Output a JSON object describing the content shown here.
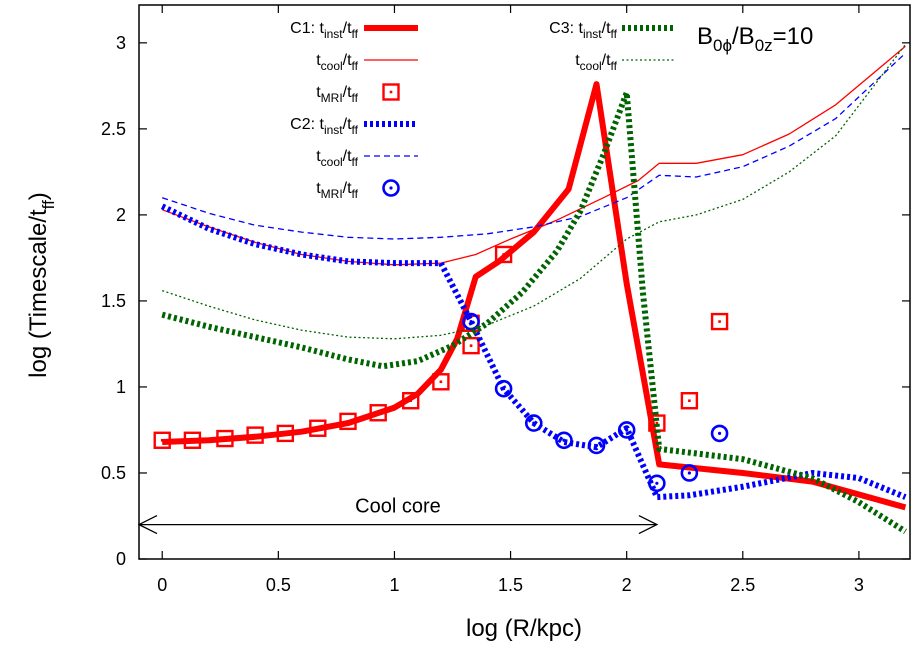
{
  "chart_data": {
    "type": "line",
    "xlabel": "log (R/kpc)",
    "ylabel": "log (Timescale/t",
    "ylabel_sub": "ff",
    "ylabel_close": ")",
    "xlim": [
      -0.1,
      3.22
    ],
    "ylim": [
      0,
      3.22
    ],
    "x_ticks": [
      0,
      0.5,
      1,
      1.5,
      2,
      2.5,
      3
    ],
    "x_tick_labels": [
      "0",
      "0.5",
      "1",
      "1.5",
      "2",
      "2.5",
      "3"
    ],
    "y_ticks": [
      0,
      0.5,
      1,
      1.5,
      2,
      2.5,
      3
    ],
    "y_tick_labels": [
      "0",
      "0.5",
      "1",
      "1.5",
      "2",
      "2.5",
      "3"
    ],
    "annotation": {
      "text": "Cool core",
      "x_from": -0.1,
      "x_to": 2.13,
      "y": 0.2
    },
    "bfield": {
      "main": "B",
      "sub1": "0ϕ",
      "slash": "/B",
      "sub2": "0z",
      "tail": "=10"
    },
    "colors": {
      "c1": "#ff0000",
      "c2": "#0000ff",
      "c3": "#006400"
    },
    "series": [
      {
        "id": "c1_inst",
        "legend": {
          "prefix": "C1: ",
          "main": "t",
          "sub": "inst",
          "rest": "/t",
          "sub2": "ff"
        },
        "color": "#ff0000",
        "style": "thick",
        "marker": "none",
        "x": [
          0,
          0.2,
          0.4,
          0.6,
          0.8,
          1.0,
          1.1,
          1.2,
          1.27,
          1.35,
          1.45,
          1.6,
          1.75,
          1.87,
          2.0,
          2.14,
          2.5,
          2.8,
          3.2
        ],
        "values": [
          0.68,
          0.69,
          0.71,
          0.74,
          0.79,
          0.88,
          0.96,
          1.1,
          1.28,
          1.64,
          1.73,
          1.9,
          2.15,
          2.76,
          1.6,
          0.55,
          0.5,
          0.45,
          0.3
        ]
      },
      {
        "id": "c1_cool",
        "legend": {
          "prefix": "",
          "main": "t",
          "sub": "cool",
          "rest": "/t",
          "sub2": "ff"
        },
        "color": "#ff0000",
        "style": "thin",
        "marker": "none",
        "x": [
          0,
          0.2,
          0.4,
          0.6,
          0.8,
          1.0,
          1.2,
          1.35,
          1.5,
          1.7,
          1.9,
          2.05,
          2.14,
          2.3,
          2.5,
          2.7,
          2.9,
          3.2
        ],
        "values": [
          2.03,
          1.93,
          1.84,
          1.77,
          1.73,
          1.71,
          1.72,
          1.77,
          1.86,
          1.97,
          2.1,
          2.2,
          2.3,
          2.3,
          2.35,
          2.47,
          2.64,
          2.98
        ]
      },
      {
        "id": "c1_mri",
        "legend": {
          "prefix": "",
          "main": "t",
          "sub": "MRI",
          "rest": "/t",
          "sub2": "ff"
        },
        "color": "#ff0000",
        "style": "none",
        "marker": "square",
        "x": [
          0,
          0.13,
          0.27,
          0.4,
          0.53,
          0.67,
          0.8,
          0.93,
          1.07,
          1.2,
          1.33,
          1.33,
          1.47,
          2.13,
          2.27,
          2.4
        ],
        "values": [
          0.69,
          0.69,
          0.7,
          0.72,
          0.73,
          0.76,
          0.8,
          0.85,
          0.92,
          1.03,
          1.24,
          1.37,
          1.77,
          0.79,
          0.92,
          1.38
        ]
      },
      {
        "id": "c2_inst",
        "legend": {
          "prefix": "C2: ",
          "main": "t",
          "sub": "inst",
          "rest": "/t",
          "sub2": "ff"
        },
        "color": "#0000ff",
        "style": "thick-dotted",
        "marker": "none",
        "x": [
          0,
          0.2,
          0.4,
          0.6,
          0.8,
          1.0,
          1.2,
          1.33,
          1.47,
          1.6,
          1.73,
          1.87,
          2.0,
          2.13,
          2.27,
          2.5,
          2.8,
          3.0,
          3.2
        ],
        "values": [
          2.05,
          1.92,
          1.83,
          1.77,
          1.73,
          1.72,
          1.72,
          1.38,
          0.99,
          0.79,
          0.68,
          0.65,
          0.76,
          0.36,
          0.37,
          0.42,
          0.5,
          0.47,
          0.36
        ]
      },
      {
        "id": "c2_cool",
        "legend": {
          "prefix": "",
          "main": "t",
          "sub": "cool",
          "rest": "/t",
          "sub2": "ff"
        },
        "color": "#0000ff",
        "style": "thin-dashed",
        "marker": "none",
        "x": [
          0,
          0.2,
          0.4,
          0.6,
          0.8,
          1.0,
          1.2,
          1.4,
          1.6,
          1.8,
          2.0,
          2.14,
          2.3,
          2.5,
          2.7,
          2.9,
          3.2
        ],
        "values": [
          2.1,
          2.01,
          1.94,
          1.9,
          1.87,
          1.86,
          1.87,
          1.89,
          1.93,
          1.99,
          2.1,
          2.23,
          2.22,
          2.28,
          2.4,
          2.56,
          2.94
        ]
      },
      {
        "id": "c2_mri",
        "legend": {
          "prefix": "",
          "main": "t",
          "sub": "MRI",
          "rest": "/t",
          "sub2": "ff"
        },
        "color": "#0000ff",
        "style": "none",
        "marker": "circle",
        "x": [
          1.33,
          1.47,
          1.6,
          1.73,
          1.87,
          2.0,
          2.13,
          2.27,
          2.4
        ],
        "values": [
          1.38,
          0.99,
          0.79,
          0.69,
          0.66,
          0.75,
          0.44,
          0.5,
          0.73
        ]
      },
      {
        "id": "c3_inst",
        "legend": {
          "prefix": "C3: ",
          "main": "t",
          "sub": "inst",
          "rest": "/t",
          "sub2": "ff"
        },
        "color": "#006400",
        "style": "thick-dotted",
        "marker": "none",
        "x": [
          0,
          0.2,
          0.4,
          0.6,
          0.8,
          0.95,
          1.1,
          1.25,
          1.4,
          1.55,
          1.7,
          1.8,
          1.9,
          2.0,
          2.07,
          2.14,
          2.5,
          2.8,
          3.0,
          3.2
        ],
        "values": [
          1.42,
          1.35,
          1.29,
          1.23,
          1.16,
          1.12,
          1.15,
          1.24,
          1.37,
          1.55,
          1.79,
          2.02,
          2.35,
          2.71,
          1.55,
          0.64,
          0.58,
          0.47,
          0.33,
          0.16
        ]
      },
      {
        "id": "c3_cool",
        "legend": {
          "prefix": "",
          "main": "t",
          "sub": "cool",
          "rest": "/t",
          "sub2": "ff"
        },
        "color": "#006400",
        "style": "thin-dotted",
        "marker": "none",
        "x": [
          0,
          0.2,
          0.4,
          0.6,
          0.8,
          1.0,
          1.2,
          1.4,
          1.6,
          1.8,
          2.0,
          2.14,
          2.3,
          2.5,
          2.7,
          2.9,
          3.2
        ],
        "values": [
          1.56,
          1.47,
          1.39,
          1.33,
          1.29,
          1.28,
          1.3,
          1.36,
          1.47,
          1.63,
          1.86,
          1.96,
          2.0,
          2.09,
          2.25,
          2.46,
          2.99
        ]
      }
    ]
  }
}
